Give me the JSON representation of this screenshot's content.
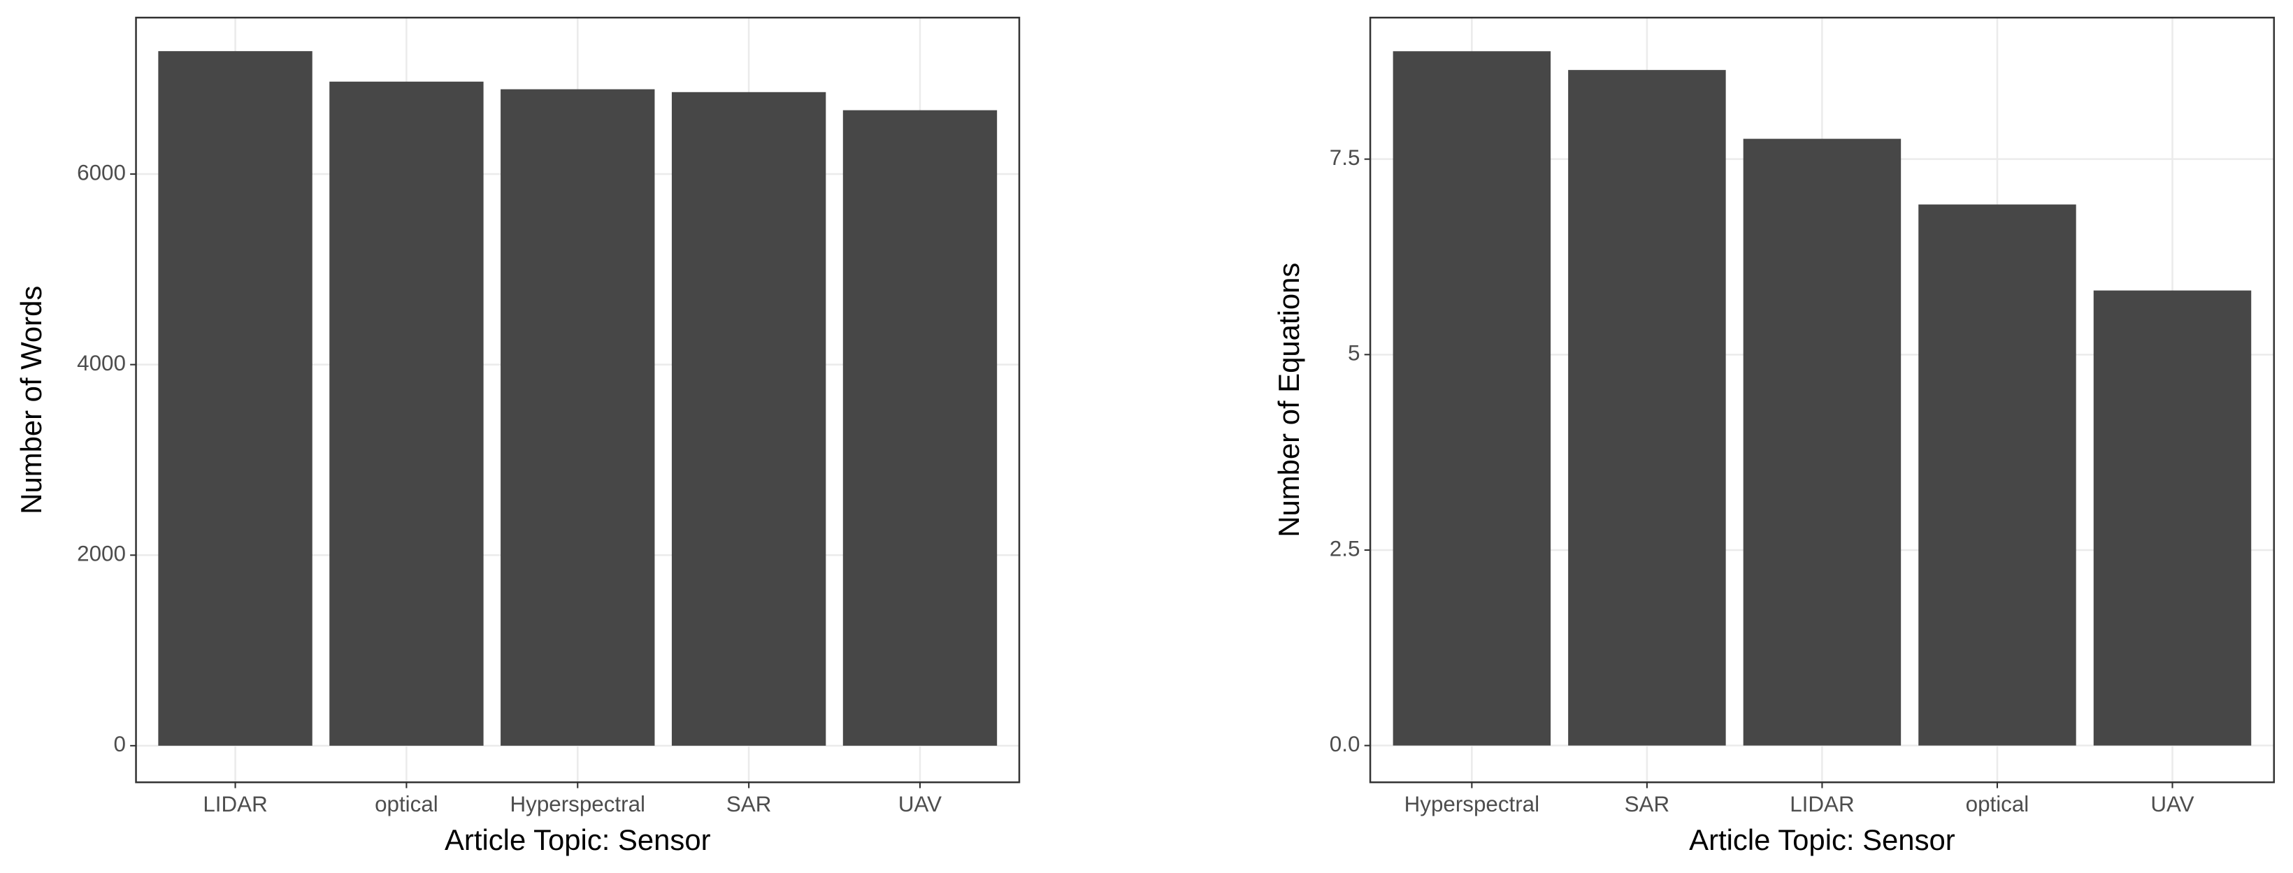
{
  "chart_data": [
    {
      "type": "bar",
      "x_label": "Article Topic: Sensor",
      "y_label": "Number of Words",
      "categories": [
        "LIDAR",
        "optical",
        "Hyperspectral",
        "SAR",
        "UAV"
      ],
      "values": [
        7290,
        6970,
        6890,
        6860,
        6670
      ],
      "color": "#474747",
      "ylim": [
        -384,
        7642
      ],
      "yticks": [
        0,
        2000,
        4000,
        6000
      ],
      "grid": true
    },
    {
      "type": "bar",
      "x_label": "Article Topic: Sensor",
      "y_label": "Number of Equations",
      "categories": [
        "Hyperspectral",
        "SAR",
        "LIDAR",
        "optical",
        "UAV"
      ],
      "values": [
        8.88,
        8.64,
        7.76,
        6.92,
        5.82
      ],
      "color": "#474747",
      "ylim": [
        -0.47,
        9.31
      ],
      "yticks": [
        {
          "value": 0,
          "label": "0.0"
        },
        2.5,
        5,
        7.5
      ],
      "grid": true
    }
  ]
}
